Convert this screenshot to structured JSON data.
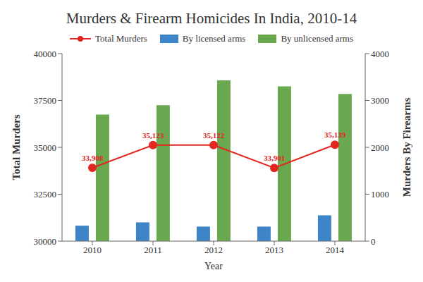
{
  "chart_data": {
    "type": "bar",
    "title": "Murders & Firearm Homicides In India, 2010-14",
    "categories": [
      "2010",
      "2011",
      "2012",
      "2013",
      "2014"
    ],
    "x_label": "Year",
    "y_label": "Total Murders",
    "y2_label": "Murders By Firearms",
    "ylim": [
      30000,
      40000
    ],
    "yticks": [
      30000,
      32500,
      35000,
      37500,
      40000
    ],
    "y2lim": [
      0,
      4000
    ],
    "y2ticks": [
      0,
      1000,
      2000,
      3000,
      4000
    ],
    "grid": false,
    "legend": "top",
    "series": [
      {
        "name": "Total Murders",
        "type": "line",
        "color": "#e3261f",
        "marker": "circle",
        "data_labels": true,
        "values": [
          33908,
          35123,
          35122,
          33901,
          35139
        ],
        "value_labels": [
          "33,908",
          "35,123",
          "35,122",
          "33,901",
          "35,139"
        ]
      },
      {
        "name": "By licensed arms",
        "type": "bar",
        "axis": "y2",
        "color": "#3d85c6",
        "values": [
          330,
          400,
          310,
          310,
          550
        ]
      },
      {
        "name": "By unlicensed arms",
        "type": "bar",
        "axis": "y2",
        "color": "#6aa84f",
        "values": [
          2700,
          2900,
          3430,
          3300,
          3140
        ]
      }
    ]
  }
}
